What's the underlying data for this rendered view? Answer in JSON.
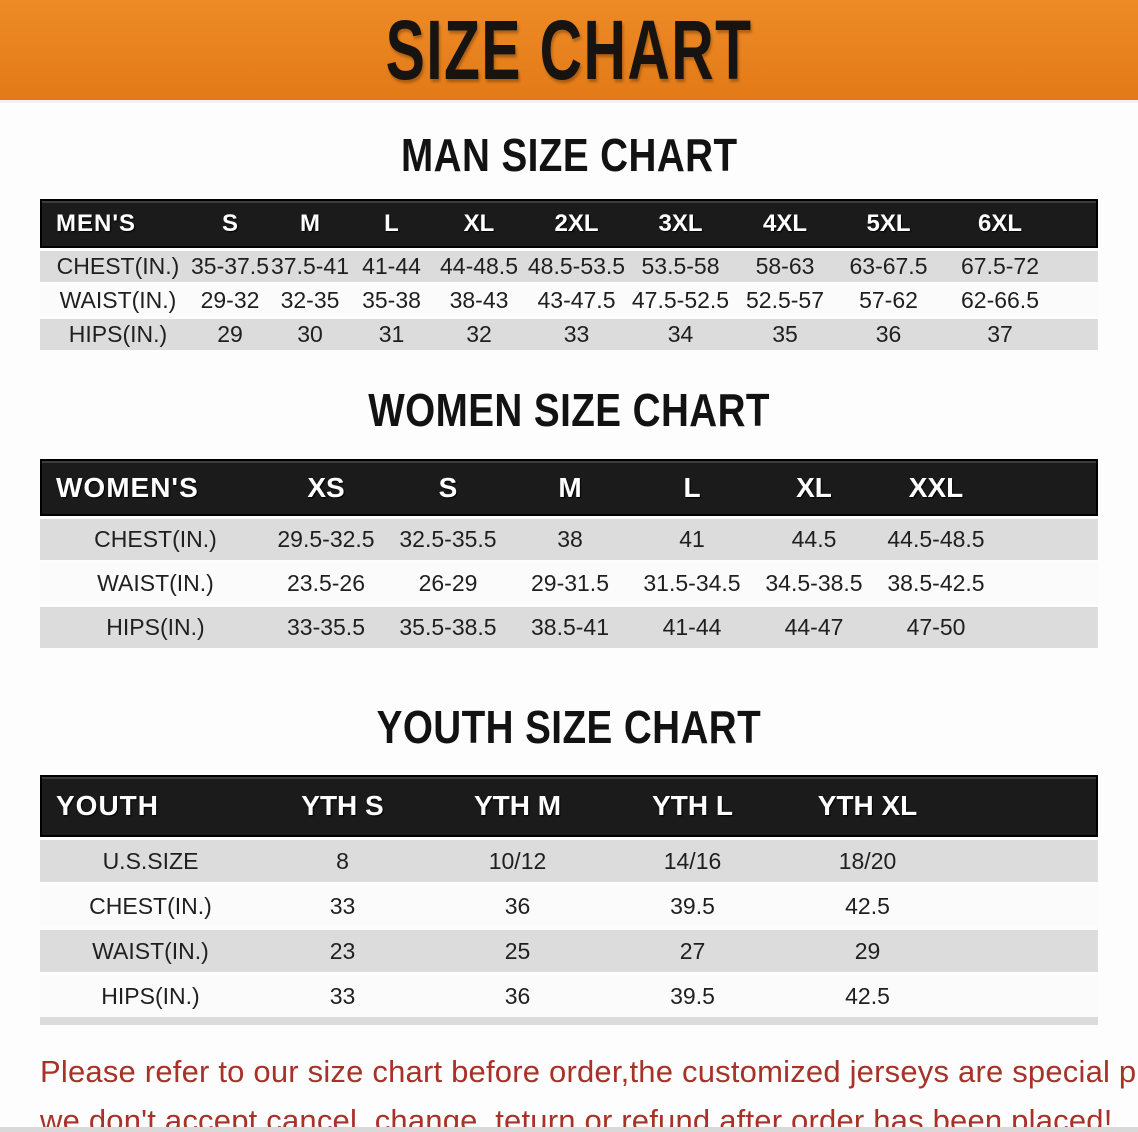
{
  "banner": {
    "title": "SIZE CHART",
    "bg_color": "#E8821F",
    "text_color": "#161310"
  },
  "colors": {
    "table_header_bg": "#1B1B1B",
    "table_header_text": "#FFFFFF",
    "stripe_row_bg": "#DCDCDC",
    "plain_row_bg": "#FBFBFB",
    "notice_text": "#A63228"
  },
  "sections": [
    {
      "heading": "MAN SIZE CHART",
      "table": {
        "header": [
          "MEN'S",
          "S",
          "M",
          "L",
          "XL",
          "2XL",
          "3XL",
          "4XL",
          "5XL",
          "6XL"
        ],
        "rows": [
          {
            "label": "CHEST(IN.)",
            "values": [
              "35-37.5",
              "37.5-41",
              "41-44",
              "44-48.5",
              "48.5-53.5",
              "53.5-58",
              "58-63",
              "63-67.5",
              "67.5-72"
            ]
          },
          {
            "label": "WAIST(IN.)",
            "values": [
              "29-32",
              "32-35",
              "35-38",
              "38-43",
              "43-47.5",
              "47.5-52.5",
              "52.5-57",
              "57-62",
              "62-66.5"
            ]
          },
          {
            "label": "HIPS(IN.)",
            "values": [
              "29",
              "30",
              "31",
              "32",
              "33",
              "34",
              "35",
              "36",
              "37"
            ]
          }
        ]
      }
    },
    {
      "heading": "WOMEN SIZE CHART",
      "table": {
        "header": [
          "WOMEN'S",
          "XS",
          "S",
          "M",
          "L",
          "XL",
          "XXL"
        ],
        "rows": [
          {
            "label": "CHEST(IN.)",
            "values": [
              "29.5-32.5",
              "32.5-35.5",
              "38",
              "41",
              "44.5",
              "44.5-48.5"
            ]
          },
          {
            "label": "WAIST(IN.)",
            "values": [
              "23.5-26",
              "26-29",
              "29-31.5",
              "31.5-34.5",
              "34.5-38.5",
              "38.5-42.5"
            ]
          },
          {
            "label": "HIPS(IN.)",
            "values": [
              "33-35.5",
              "35.5-38.5",
              "38.5-41",
              "41-44",
              "44-47",
              "47-50"
            ]
          }
        ]
      }
    },
    {
      "heading": "YOUTH SIZE CHART",
      "table": {
        "header": [
          "YOUTH",
          "YTH S",
          "YTH M",
          "YTH L",
          "YTH XL"
        ],
        "rows": [
          {
            "label": "U.S.SIZE",
            "values": [
              "8",
              "10/12",
              "14/16",
              "18/20"
            ]
          },
          {
            "label": "CHEST(IN.)",
            "values": [
              "33",
              "36",
              "39.5",
              "42.5"
            ]
          },
          {
            "label": "WAIST(IN.)",
            "values": [
              "23",
              "25",
              "27",
              "29"
            ]
          },
          {
            "label": "HIPS(IN.)",
            "values": [
              "33",
              "36",
              "39.5",
              "42.5"
            ]
          }
        ]
      }
    }
  ],
  "footer": {
    "lines": [
      "Please refer to our size chart before order,the customized jerseys are special products,",
      "we don't accept cancel, change, teturn or refund after order has been placed!"
    ]
  }
}
